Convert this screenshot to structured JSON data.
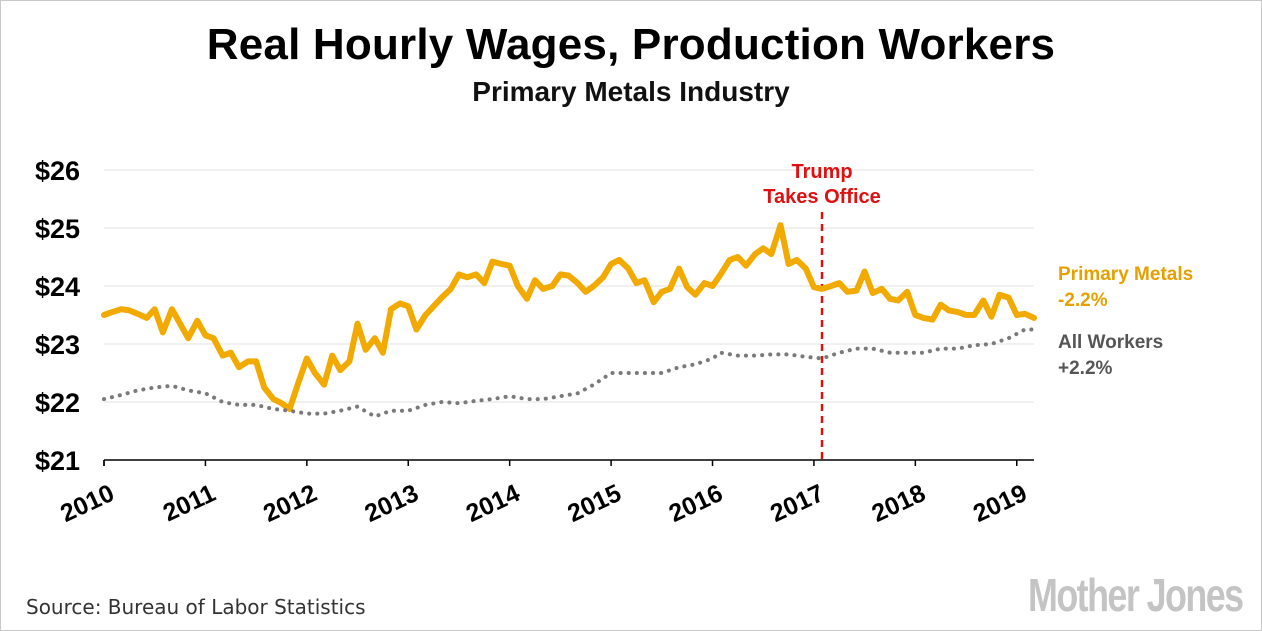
{
  "header": {
    "title": "Real Hourly Wages, Production Workers",
    "subtitle": "Primary Metals Industry"
  },
  "footer": {
    "source": "Source: Bureau of Labor Statistics",
    "brand": "Mother Jones"
  },
  "colors": {
    "primary_metals": "#f2a900",
    "all_workers": "#7a7a7a",
    "annotation": "#e01010",
    "grid": "#e2e2e2",
    "legend_primary": "#e6a100",
    "legend_all": "#555555"
  },
  "chart_data": {
    "type": "line",
    "title": "Real Hourly Wages, Production Workers",
    "subtitle": "Primary Metals Industry",
    "xlabel": "",
    "ylabel": "",
    "ylim": [
      21,
      26
    ],
    "xlim": [
      2010,
      2019.17
    ],
    "yticks": [
      21,
      22,
      23,
      24,
      25,
      26
    ],
    "ytick_labels": [
      "$21",
      "$22",
      "$23",
      "$24",
      "$25",
      "$26"
    ],
    "xticks": [
      2010,
      2011,
      2012,
      2013,
      2014,
      2015,
      2016,
      2017,
      2018,
      2019
    ],
    "xtick_labels": [
      "2010",
      "2011",
      "2012",
      "2013",
      "2014",
      "2015",
      "2016",
      "2017",
      "2018",
      "2019"
    ],
    "grid": true,
    "annotation": {
      "x": 2017.08,
      "label_lines": [
        "Trump",
        "Takes Office"
      ],
      "style": "dashed"
    },
    "series": [
      {
        "name": "Primary Metals",
        "change_label": "-2.2%",
        "style": "solid",
        "points": [
          [
            2010.0,
            23.5
          ],
          [
            2010.08,
            23.55
          ],
          [
            2010.17,
            23.6
          ],
          [
            2010.25,
            23.58
          ],
          [
            2010.33,
            23.52
          ],
          [
            2010.42,
            23.45
          ],
          [
            2010.5,
            23.6
          ],
          [
            2010.58,
            23.2
          ],
          [
            2010.67,
            23.6
          ],
          [
            2010.75,
            23.35
          ],
          [
            2010.83,
            23.1
          ],
          [
            2010.92,
            23.4
          ],
          [
            2011.0,
            23.15
          ],
          [
            2011.08,
            23.1
          ],
          [
            2011.17,
            22.8
          ],
          [
            2011.25,
            22.85
          ],
          [
            2011.33,
            22.6
          ],
          [
            2011.42,
            22.7
          ],
          [
            2011.5,
            22.7
          ],
          [
            2011.58,
            22.25
          ],
          [
            2011.67,
            22.05
          ],
          [
            2011.75,
            21.98
          ],
          [
            2011.83,
            21.88
          ],
          [
            2011.92,
            22.35
          ],
          [
            2012.0,
            22.75
          ],
          [
            2012.08,
            22.5
          ],
          [
            2012.17,
            22.3
          ],
          [
            2012.25,
            22.8
          ],
          [
            2012.33,
            22.55
          ],
          [
            2012.42,
            22.7
          ],
          [
            2012.5,
            23.35
          ],
          [
            2012.58,
            22.9
          ],
          [
            2012.67,
            23.1
          ],
          [
            2012.75,
            22.85
          ],
          [
            2012.83,
            23.6
          ],
          [
            2012.92,
            23.7
          ],
          [
            2013.0,
            23.65
          ],
          [
            2013.08,
            23.25
          ],
          [
            2013.17,
            23.5
          ],
          [
            2013.25,
            23.65
          ],
          [
            2013.33,
            23.8
          ],
          [
            2013.42,
            23.95
          ],
          [
            2013.5,
            24.2
          ],
          [
            2013.58,
            24.15
          ],
          [
            2013.67,
            24.2
          ],
          [
            2013.75,
            24.05
          ],
          [
            2013.83,
            24.42
          ],
          [
            2013.92,
            24.38
          ],
          [
            2014.0,
            24.35
          ],
          [
            2014.08,
            24.0
          ],
          [
            2014.17,
            23.78
          ],
          [
            2014.25,
            24.1
          ],
          [
            2014.33,
            23.95
          ],
          [
            2014.42,
            24.0
          ],
          [
            2014.5,
            24.2
          ],
          [
            2014.58,
            24.18
          ],
          [
            2014.67,
            24.05
          ],
          [
            2014.75,
            23.9
          ],
          [
            2014.83,
            24.0
          ],
          [
            2014.92,
            24.15
          ],
          [
            2015.0,
            24.38
          ],
          [
            2015.08,
            24.45
          ],
          [
            2015.17,
            24.3
          ],
          [
            2015.25,
            24.05
          ],
          [
            2015.33,
            24.1
          ],
          [
            2015.42,
            23.72
          ],
          [
            2015.5,
            23.9
          ],
          [
            2015.58,
            23.95
          ],
          [
            2015.67,
            24.3
          ],
          [
            2015.75,
            23.98
          ],
          [
            2015.83,
            23.85
          ],
          [
            2015.92,
            24.05
          ],
          [
            2016.0,
            24.0
          ],
          [
            2016.08,
            24.2
          ],
          [
            2016.17,
            24.45
          ],
          [
            2016.25,
            24.5
          ],
          [
            2016.33,
            24.35
          ],
          [
            2016.42,
            24.55
          ],
          [
            2016.5,
            24.65
          ],
          [
            2016.58,
            24.55
          ],
          [
            2016.67,
            25.05
          ],
          [
            2016.75,
            24.38
          ],
          [
            2016.83,
            24.45
          ],
          [
            2016.92,
            24.3
          ],
          [
            2017.0,
            23.98
          ],
          [
            2017.08,
            23.95
          ],
          [
            2017.17,
            24.0
          ],
          [
            2017.25,
            24.05
          ],
          [
            2017.33,
            23.9
          ],
          [
            2017.42,
            23.92
          ],
          [
            2017.5,
            24.25
          ],
          [
            2017.58,
            23.88
          ],
          [
            2017.67,
            23.95
          ],
          [
            2017.75,
            23.78
          ],
          [
            2017.83,
            23.75
          ],
          [
            2017.92,
            23.9
          ],
          [
            2018.0,
            23.5
          ],
          [
            2018.08,
            23.45
          ],
          [
            2018.17,
            23.42
          ],
          [
            2018.25,
            23.68
          ],
          [
            2018.33,
            23.58
          ],
          [
            2018.42,
            23.55
          ],
          [
            2018.5,
            23.5
          ],
          [
            2018.58,
            23.5
          ],
          [
            2018.67,
            23.75
          ],
          [
            2018.75,
            23.47
          ],
          [
            2018.83,
            23.85
          ],
          [
            2018.92,
            23.8
          ],
          [
            2019.0,
            23.5
          ],
          [
            2019.08,
            23.52
          ],
          [
            2019.17,
            23.45
          ]
        ]
      },
      {
        "name": "All Workers",
        "change_label": "+2.2%",
        "style": "dotted",
        "points": [
          [
            2010.0,
            22.05
          ],
          [
            2010.17,
            22.12
          ],
          [
            2010.33,
            22.2
          ],
          [
            2010.5,
            22.25
          ],
          [
            2010.67,
            22.28
          ],
          [
            2010.83,
            22.2
          ],
          [
            2011.0,
            22.15
          ],
          [
            2011.17,
            22.0
          ],
          [
            2011.33,
            21.95
          ],
          [
            2011.5,
            21.95
          ],
          [
            2011.67,
            21.88
          ],
          [
            2011.83,
            21.85
          ],
          [
            2012.0,
            21.8
          ],
          [
            2012.17,
            21.8
          ],
          [
            2012.33,
            21.85
          ],
          [
            2012.5,
            21.92
          ],
          [
            2012.67,
            21.75
          ],
          [
            2012.83,
            21.85
          ],
          [
            2013.0,
            21.85
          ],
          [
            2013.17,
            21.95
          ],
          [
            2013.33,
            22.0
          ],
          [
            2013.5,
            21.98
          ],
          [
            2013.67,
            22.02
          ],
          [
            2013.83,
            22.05
          ],
          [
            2014.0,
            22.1
          ],
          [
            2014.17,
            22.05
          ],
          [
            2014.33,
            22.05
          ],
          [
            2014.5,
            22.1
          ],
          [
            2014.67,
            22.15
          ],
          [
            2014.83,
            22.3
          ],
          [
            2015.0,
            22.5
          ],
          [
            2015.17,
            22.5
          ],
          [
            2015.33,
            22.5
          ],
          [
            2015.5,
            22.5
          ],
          [
            2015.67,
            22.6
          ],
          [
            2015.83,
            22.65
          ],
          [
            2016.0,
            22.75
          ],
          [
            2016.08,
            22.85
          ],
          [
            2016.25,
            22.8
          ],
          [
            2016.42,
            22.8
          ],
          [
            2016.58,
            22.82
          ],
          [
            2016.75,
            22.82
          ],
          [
            2016.92,
            22.78
          ],
          [
            2017.08,
            22.75
          ],
          [
            2017.25,
            22.85
          ],
          [
            2017.42,
            22.92
          ],
          [
            2017.58,
            22.92
          ],
          [
            2017.75,
            22.85
          ],
          [
            2017.92,
            22.85
          ],
          [
            2018.08,
            22.85
          ],
          [
            2018.25,
            22.92
          ],
          [
            2018.42,
            22.92
          ],
          [
            2018.58,
            22.98
          ],
          [
            2018.75,
            23.0
          ],
          [
            2018.92,
            23.1
          ],
          [
            2019.08,
            23.25
          ],
          [
            2019.17,
            23.25
          ]
        ]
      }
    ]
  }
}
